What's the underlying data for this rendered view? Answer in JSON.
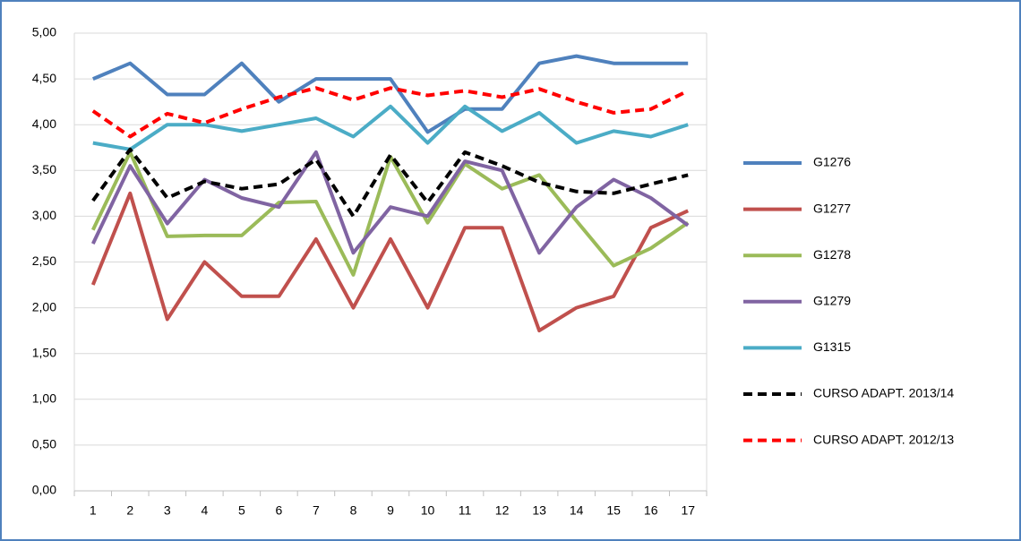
{
  "chart_data": {
    "type": "line",
    "categories": [
      "1",
      "2",
      "3",
      "4",
      "5",
      "6",
      "7",
      "8",
      "9",
      "10",
      "11",
      "12",
      "13",
      "14",
      "15",
      "16",
      "17"
    ],
    "ylim": [
      0,
      5
    ],
    "yticks": [
      {
        "value": 0,
        "label": "0,00"
      },
      {
        "value": 0.5,
        "label": "0,50"
      },
      {
        "value": 1,
        "label": "1,00"
      },
      {
        "value": 1.5,
        "label": "1,50"
      },
      {
        "value": 2,
        "label": "2,00"
      },
      {
        "value": 2.5,
        "label": "2,50"
      },
      {
        "value": 3,
        "label": "3,00"
      },
      {
        "value": 3.5,
        "label": "3,50"
      },
      {
        "value": 4,
        "label": "4,00"
      },
      {
        "value": 4.5,
        "label": "4,50"
      },
      {
        "value": 5,
        "label": "5,00"
      }
    ],
    "grid": true,
    "legend": "right",
    "series": [
      {
        "name": "G1276",
        "color": "#4f81bd",
        "dash": false,
        "values": [
          4.5,
          4.67,
          4.33,
          4.33,
          4.67,
          4.25,
          4.5,
          4.5,
          4.5,
          3.92,
          4.17,
          4.17,
          4.67,
          4.75,
          4.67,
          4.67,
          4.67
        ]
      },
      {
        "name": "G1277",
        "color": "#c0504d",
        "dash": false,
        "values": [
          2.25,
          3.25,
          1.875,
          2.5,
          2.125,
          2.125,
          2.75,
          2.0,
          2.75,
          2.0,
          2.875,
          2.875,
          1.75,
          2.0,
          2.125,
          2.875,
          3.06
        ]
      },
      {
        "name": "G1278",
        "color": "#9bbb59",
        "dash": false,
        "values": [
          2.85,
          3.7,
          2.78,
          2.79,
          2.79,
          3.15,
          3.16,
          2.36,
          3.65,
          2.93,
          3.57,
          3.3,
          3.45,
          2.95,
          2.46,
          2.65,
          2.93
        ]
      },
      {
        "name": "G1279",
        "color": "#8064a2",
        "dash": false,
        "values": [
          2.7,
          3.55,
          2.92,
          3.4,
          3.2,
          3.1,
          3.7,
          2.6,
          3.1,
          3.0,
          3.6,
          3.5,
          2.6,
          3.1,
          3.4,
          3.2,
          2.9
        ]
      },
      {
        "name": "G1315",
        "color": "#4bacc6",
        "dash": false,
        "values": [
          3.8,
          3.73,
          4.0,
          4.0,
          3.93,
          4.0,
          4.07,
          3.87,
          4.2,
          3.8,
          4.2,
          3.93,
          4.13,
          3.8,
          3.93,
          3.87,
          4.0
        ]
      },
      {
        "name": "CURSO ADAPT. 2013/14",
        "color": "#000000",
        "dash": true,
        "values": [
          3.17,
          3.73,
          3.2,
          3.38,
          3.3,
          3.35,
          3.62,
          3.0,
          3.67,
          3.15,
          3.7,
          3.55,
          3.37,
          3.27,
          3.25,
          3.35,
          3.45
        ]
      },
      {
        "name": "CURSO ADAPT. 2012/13",
        "color": "#ff0000",
        "dash": true,
        "values": [
          4.15,
          3.87,
          4.12,
          4.02,
          4.17,
          4.3,
          4.4,
          4.27,
          4.4,
          4.32,
          4.37,
          4.3,
          4.39,
          4.25,
          4.13,
          4.17,
          4.37
        ]
      }
    ]
  }
}
